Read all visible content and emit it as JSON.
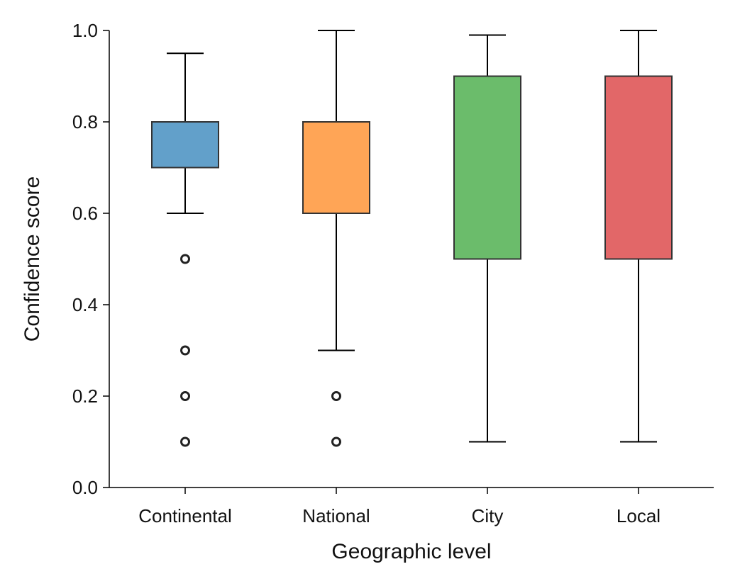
{
  "chart_data": {
    "type": "box",
    "title": "",
    "xlabel": "Geographic level",
    "ylabel": "Confidence score",
    "ylim": [
      0,
      1
    ],
    "yticks": [
      0.0,
      0.2,
      0.4,
      0.6,
      0.8,
      1.0
    ],
    "ytick_labels": [
      "0.0",
      "0.2",
      "0.4",
      "0.6",
      "0.8",
      "1.0"
    ],
    "categories": [
      "Continental",
      "National",
      "City",
      "Local"
    ],
    "boxes": [
      {
        "name": "Continental",
        "whisker_low": 0.6,
        "q1": 0.7,
        "median": 0.8,
        "q3": 0.8,
        "whisker_high": 0.95,
        "outliers": [
          0.5,
          0.3,
          0.2,
          0.1
        ],
        "color": "#1f77b4"
      },
      {
        "name": "National",
        "whisker_low": 0.3,
        "q1": 0.6,
        "median": 0.8,
        "q3": 0.8,
        "whisker_high": 1.0,
        "outliers": [
          0.2,
          0.1
        ],
        "color": "#ff7f0e"
      },
      {
        "name": "City",
        "whisker_low": 0.1,
        "q1": 0.5,
        "median": 0.9,
        "q3": 0.9,
        "whisker_high": 0.99,
        "outliers": [],
        "color": "#2ca02c"
      },
      {
        "name": "Local",
        "whisker_low": 0.1,
        "q1": 0.5,
        "median": 0.9,
        "q3": 0.9,
        "whisker_high": 1.0,
        "outliers": [],
        "color": "#d62728"
      }
    ],
    "grid": false,
    "legend": "none"
  }
}
